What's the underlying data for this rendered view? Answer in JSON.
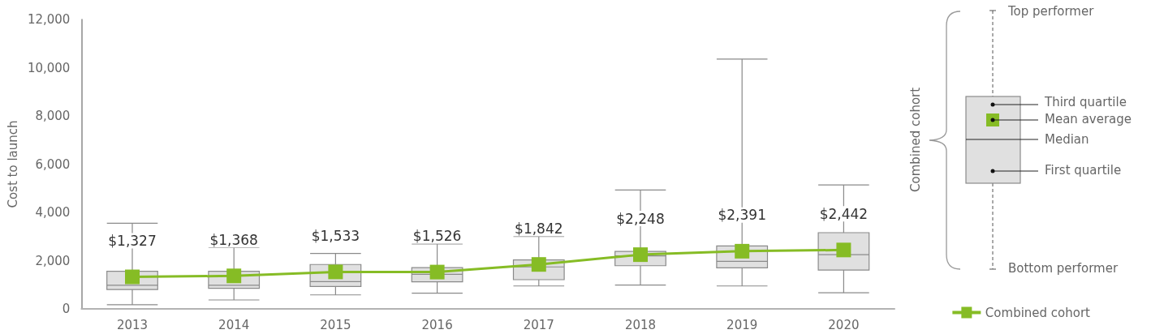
{
  "chart_data": {
    "type": "box",
    "ylabel": "Cost to launch",
    "categories": [
      "2013",
      "2014",
      "2015",
      "2016",
      "2017",
      "2018",
      "2019",
      "2020"
    ],
    "series": [
      {
        "color": "#e0e0e0",
        "boxes": [
          {
            "low": 170,
            "q1": 800,
            "median": 980,
            "q3": 1560,
            "high": 3550
          },
          {
            "low": 370,
            "q1": 850,
            "median": 980,
            "q3": 1560,
            "high": 2550
          },
          {
            "low": 580,
            "q1": 930,
            "median": 1130,
            "q3": 1840,
            "high": 2300
          },
          {
            "low": 650,
            "q1": 1120,
            "median": 1430,
            "q3": 1710,
            "high": 2690
          },
          {
            "low": 950,
            "q1": 1210,
            "median": 1740,
            "q3": 2030,
            "high": 3000
          },
          {
            "low": 990,
            "q1": 1790,
            "median": 2200,
            "q3": 2380,
            "high": 4930
          },
          {
            "low": 950,
            "q1": 1700,
            "median": 1970,
            "q3": 2610,
            "high": 10360
          },
          {
            "low": 670,
            "q1": 1610,
            "median": 2250,
            "q3": 3160,
            "high": 5140
          }
        ]
      },
      {
        "type": "line",
        "name": "Combined cohort",
        "color": "#86bc25",
        "values": [
          1327,
          1368,
          1533,
          1526,
          1842,
          2248,
          2391,
          2442
        ],
        "value_labels": [
          "$1,327",
          "$1,368",
          "$1,533",
          "$1,526",
          "$1,842",
          "$2,248",
          "$2,391",
          "$2,442"
        ]
      }
    ],
    "ylim": [
      0,
      12000
    ],
    "yticks": [
      0,
      {
        "value": 2000,
        "label": "2,000"
      },
      {
        "value": 4000,
        "label": "4,000"
      },
      {
        "value": 6000,
        "label": "6,000"
      },
      {
        "value": 8000,
        "label": "8,000"
      },
      {
        "value": 10000,
        "label": "10,000"
      },
      {
        "value": 12000,
        "label": "12,000"
      }
    ],
    "grid": false,
    "legend": "bottom right",
    "marker": "square",
    "annotations": [
      "Combined cohort",
      "Top performer",
      "Third quartile",
      "Mean average",
      "Median",
      "First quartile",
      "Bottom performer"
    ]
  }
}
